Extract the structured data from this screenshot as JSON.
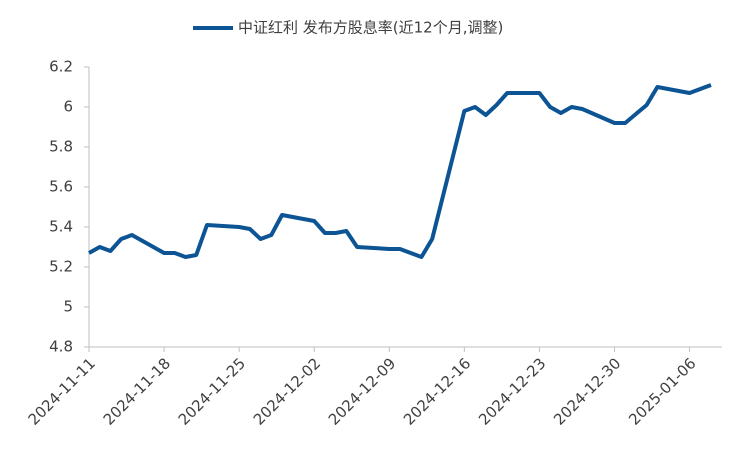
{
  "chart_data": {
    "type": "line",
    "x": [
      "2024-11-11",
      "2024-11-12",
      "2024-11-13",
      "2024-11-14",
      "2024-11-15",
      "2024-11-18",
      "2024-11-19",
      "2024-11-20",
      "2024-11-21",
      "2024-11-22",
      "2024-11-25",
      "2024-11-26",
      "2024-11-27",
      "2024-11-28",
      "2024-11-29",
      "2024-12-02",
      "2024-12-03",
      "2024-12-04",
      "2024-12-05",
      "2024-12-06",
      "2024-12-09",
      "2024-12-10",
      "2024-12-11",
      "2024-12-12",
      "2024-12-13",
      "2024-12-16",
      "2024-12-17",
      "2024-12-18",
      "2024-12-19",
      "2024-12-20",
      "2024-12-23",
      "2024-12-24",
      "2024-12-25",
      "2024-12-26",
      "2024-12-27",
      "2024-12-30",
      "2024-12-31",
      "2025-01-02",
      "2025-01-03",
      "2025-01-06",
      "2025-01-07",
      "2025-01-08"
    ],
    "series": [
      {
        "name": "中证红利 发布方股息率(近12个月,调整)",
        "color": "#0c5494",
        "values": [
          5.27,
          5.3,
          5.28,
          5.34,
          5.36,
          5.27,
          5.27,
          5.25,
          5.26,
          5.41,
          5.4,
          5.39,
          5.34,
          5.36,
          5.46,
          5.43,
          5.37,
          5.37,
          5.38,
          5.3,
          5.29,
          5.29,
          5.27,
          5.25,
          5.34,
          5.98,
          6.0,
          5.96,
          6.01,
          6.07,
          6.07,
          6.0,
          5.97,
          6.0,
          5.99,
          5.92,
          5.92,
          6.01,
          6.1,
          6.07,
          6.09,
          6.11
        ]
      }
    ],
    "xlim": [
      "2024-11-11",
      "2025-01-08"
    ],
    "xticks": [
      "2024-11-11",
      "2024-11-18",
      "2024-11-25",
      "2024-12-02",
      "2024-12-09",
      "2024-12-16",
      "2024-12-23",
      "2024-12-30",
      "2025-01-06"
    ],
    "ylim": [
      4.8,
      6.2
    ],
    "yticks": [
      4.8,
      5,
      5.2,
      5.4,
      5.6,
      5.8,
      6,
      6.2
    ],
    "legend": "top"
  }
}
